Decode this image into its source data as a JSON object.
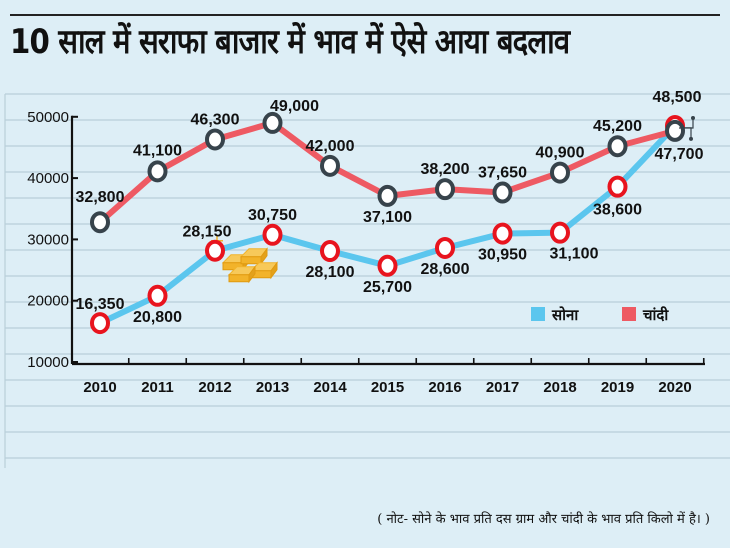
{
  "header": {
    "title": "10 साल में सराफा बाजार में भाव में ऐसे आया बदलाव"
  },
  "note": "( नोट- सोने के भाव प्रति दस ग्राम और चांदी के भाव प्रति किलो में है। )",
  "colors": {
    "background": "#ddeef6",
    "gridline": "#b9cfd9",
    "gold_line": "#5bc6ee",
    "silver_line": "#ee5a63",
    "gold_marker_ring": "#e8141e",
    "silver_marker_ring": "#37434b",
    "marker_fill": "#ffffff",
    "gold_bars_icon": "#f2b32a"
  },
  "chart_data": {
    "type": "line",
    "title": "10 साल में सराफा बाजार में भाव में ऐसे आया बदलाव",
    "xlabel": "",
    "ylabel": "",
    "categories": [
      "2010",
      "2011",
      "2012",
      "2013",
      "2014",
      "2015",
      "2016",
      "2017",
      "2018",
      "2019",
      "2020"
    ],
    "yticks": [
      10000,
      20000,
      30000,
      40000,
      50000
    ],
    "ylim": [
      10000,
      50000
    ],
    "grid": true,
    "legend_position": "right",
    "series": [
      {
        "name": "सोना",
        "key": "gold",
        "values": [
          16350,
          20800,
          28150,
          30750,
          28100,
          25700,
          28600,
          30950,
          31100,
          38600,
          48500
        ],
        "labels": [
          "16,350",
          "20,800",
          "28,150",
          "30,750",
          "28,100",
          "25,700",
          "28,600",
          "30,950",
          "31,100",
          "38,600",
          "48,500"
        ],
        "label_side": [
          "above",
          "below",
          "above",
          "above",
          "below",
          "below",
          "below",
          "below",
          "below-right",
          "below",
          "above"
        ]
      },
      {
        "name": "चांदी",
        "key": "silver",
        "values": [
          32800,
          41100,
          46300,
          49000,
          42000,
          37100,
          38200,
          37650,
          40900,
          45200,
          47700
        ],
        "labels": [
          "32,800",
          "41,100",
          "46,300",
          "49,000",
          "42,000",
          "37,100",
          "38,200",
          "37,650",
          "40,900",
          "45,200",
          "47,700"
        ],
        "label_side": [
          "above",
          "above",
          "above",
          "above-right",
          "above",
          "below",
          "above",
          "above",
          "above",
          "above",
          "below"
        ]
      }
    ],
    "annotations": [
      "gold-bars-illustration near 2012"
    ]
  }
}
